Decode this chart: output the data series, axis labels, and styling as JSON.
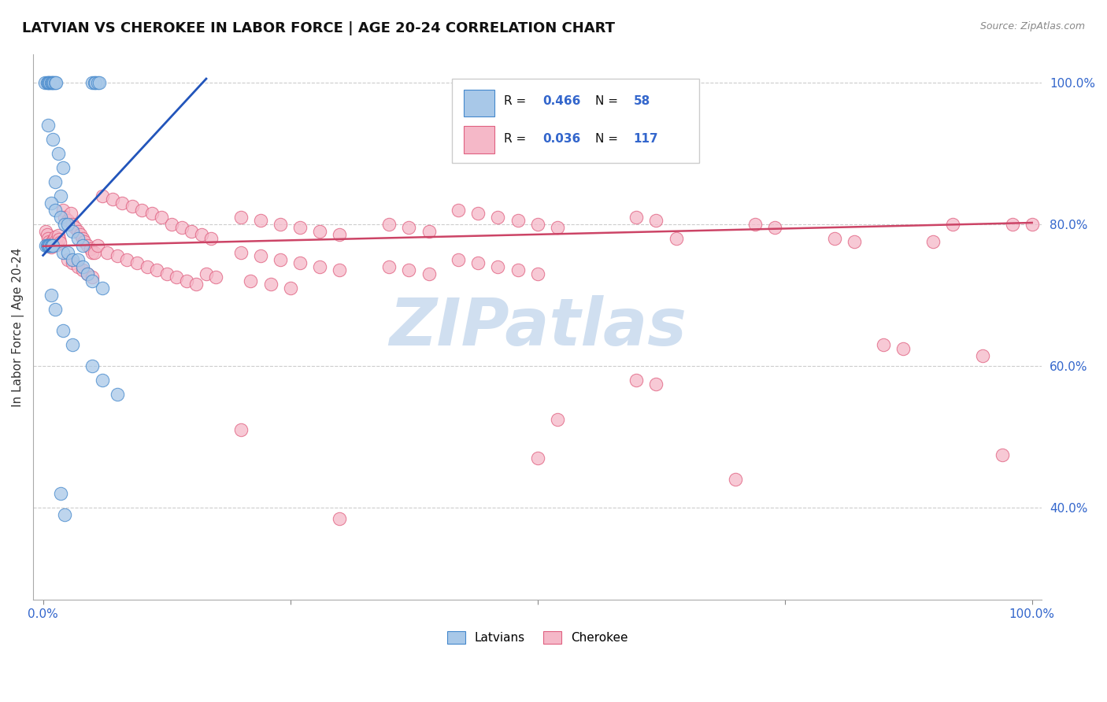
{
  "title": "LATVIAN VS CHEROKEE IN LABOR FORCE | AGE 20-24 CORRELATION CHART",
  "source_text": "Source: ZipAtlas.com",
  "ylabel": "In Labor Force | Age 20-24",
  "xlim": [
    -0.01,
    1.01
  ],
  "ylim": [
    0.27,
    1.04
  ],
  "y_ticks": [
    0.4,
    0.6,
    0.8,
    1.0
  ],
  "y_tick_labels": [
    "40.0%",
    "60.0%",
    "80.0%",
    "100.0%"
  ],
  "legend_text": [
    [
      "R = ",
      "0.466",
      "   N = ",
      "58"
    ],
    [
      "R = ",
      "0.036",
      "   N = ",
      "117"
    ]
  ],
  "latvian_color": "#a8c8e8",
  "cherokee_color": "#f5b8c8",
  "latvian_edge_color": "#4488cc",
  "cherokee_edge_color": "#e06080",
  "trend_blue": "#2255bb",
  "trend_pink": "#cc4466",
  "background_color": "#ffffff",
  "watermark_color": "#d0dff0",
  "title_fontsize": 13,
  "axis_label_fontsize": 11,
  "tick_fontsize": 11,
  "tick_color": "#3366cc",
  "lat_trend_x0": 0.0,
  "lat_trend_y0": 0.756,
  "lat_trend_x1": 0.165,
  "lat_trend_y1": 1.005,
  "cher_trend_x0": 0.0,
  "cher_trend_y0": 0.769,
  "cher_trend_x1": 1.0,
  "cher_trend_y1": 0.802
}
